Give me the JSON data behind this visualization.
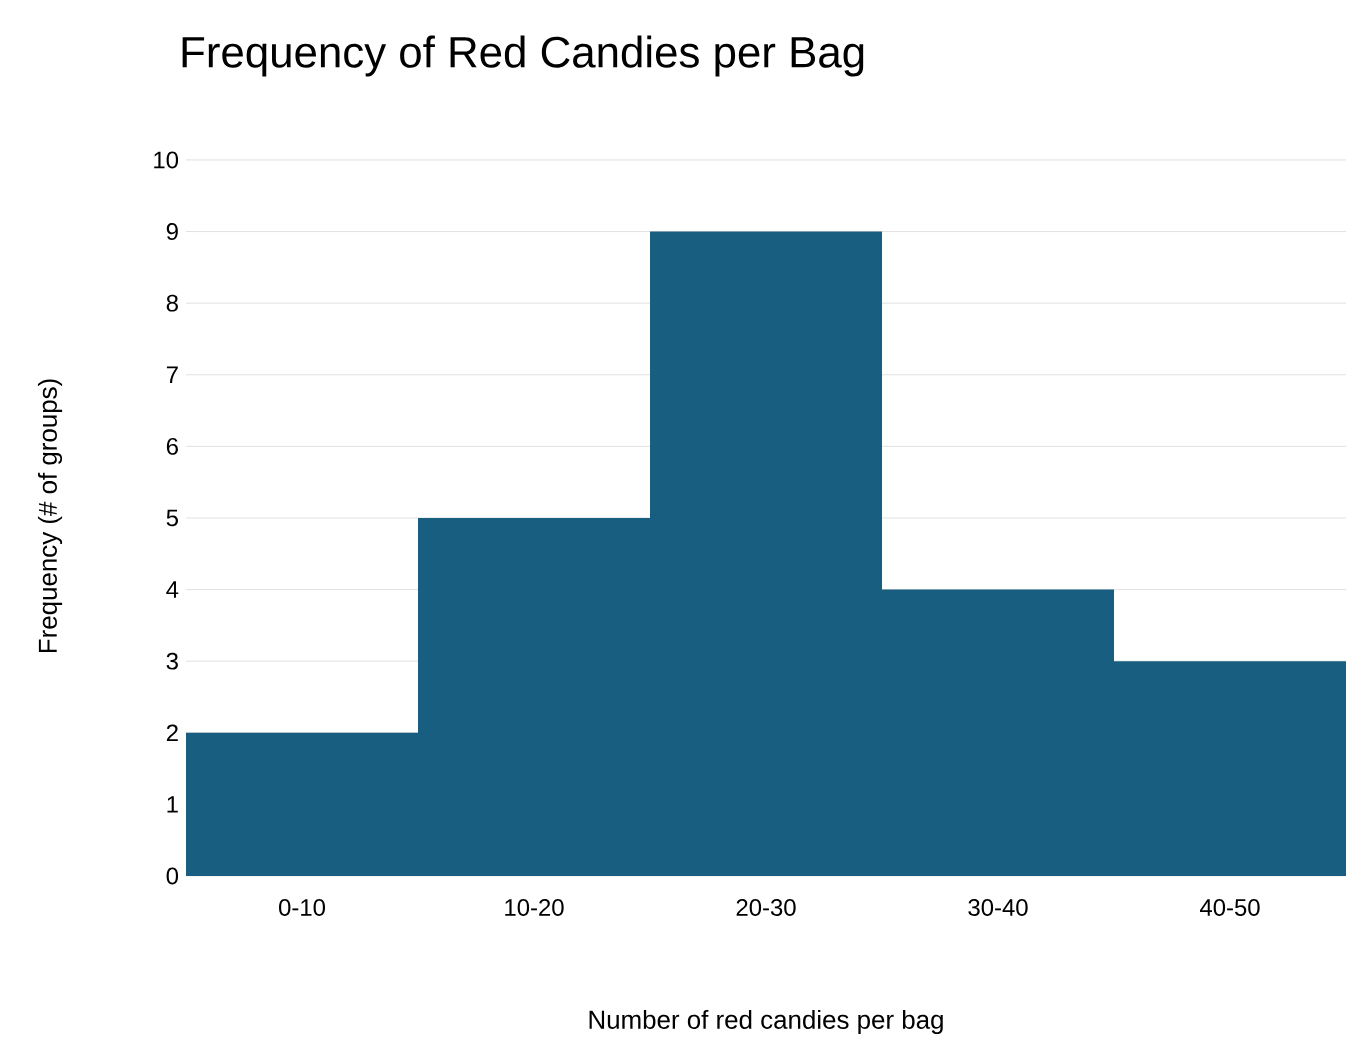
{
  "chart_data": {
    "type": "bar",
    "title": "Frequency of Red Candies per Bag",
    "xlabel": "Number of red candies per bag",
    "ylabel": "Frequency (# of groups)",
    "categories": [
      "0-10",
      "10-20",
      "20-30",
      "30-40",
      "40-50"
    ],
    "values": [
      2,
      5,
      9,
      4,
      3
    ],
    "color": "#175e80",
    "ylim": [
      0,
      10
    ],
    "yticks": [
      0,
      1,
      2,
      3,
      4,
      5,
      6,
      7,
      8,
      9,
      10
    ],
    "grid": "y"
  }
}
